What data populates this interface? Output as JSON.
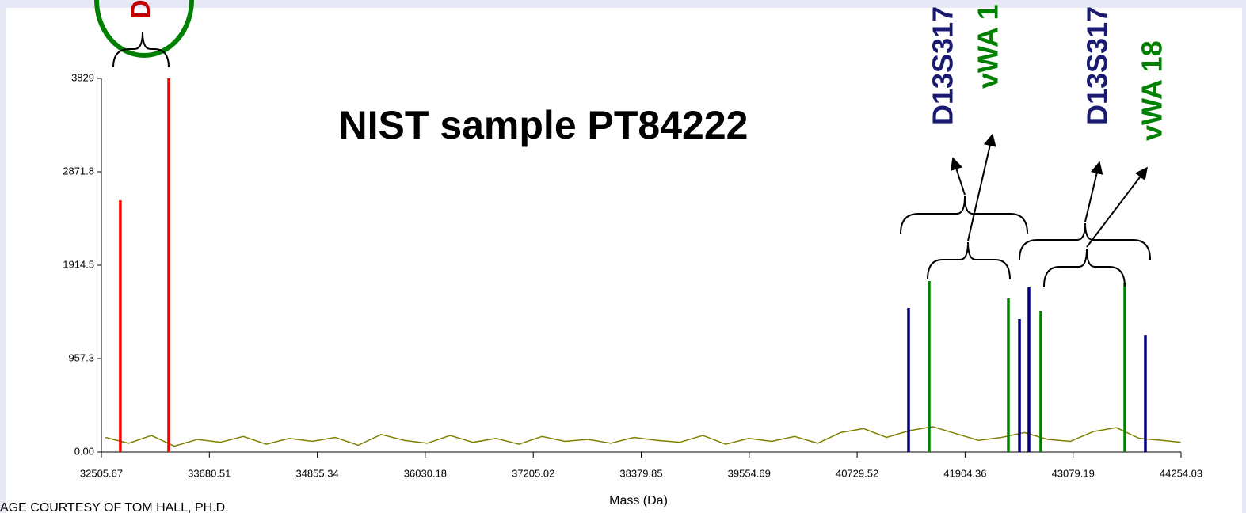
{
  "chart_data": {
    "type": "spectrum",
    "title": "NIST sample PT84222",
    "x_label": "Mass (Da)",
    "xlim": [
      32505.67,
      44254.03
    ],
    "xticks": [
      32505.67,
      33680.51,
      34855.34,
      36030.18,
      37205.02,
      38379.85,
      39554.69,
      40729.52,
      41904.36,
      43079.19,
      44254.03
    ],
    "ylim": [
      0,
      3829
    ],
    "yticks": [
      {
        "value": 0,
        "label": "0.00"
      },
      957.3,
      1914.5,
      2871.8,
      3829
    ],
    "series": [
      {
        "type": "line",
        "color": "#808000",
        "x": [
          32550,
          32800,
          33050,
          33300,
          33550,
          33800,
          34050,
          34300,
          34550,
          34800,
          35050,
          35300,
          35550,
          35800,
          36050,
          36300,
          36550,
          36800,
          37050,
          37300,
          37550,
          37800,
          38050,
          38300,
          38550,
          38800,
          39050,
          39300,
          39550,
          39800,
          40050,
          40300,
          40550,
          40800,
          41050,
          41300,
          41550,
          41800,
          42050,
          42300,
          42550,
          42800,
          43050,
          43300,
          43550,
          43800,
          44050,
          44250
        ],
        "values": [
          150,
          90,
          170,
          60,
          130,
          100,
          160,
          80,
          140,
          110,
          150,
          70,
          180,
          120,
          90,
          170,
          100,
          140,
          80,
          160,
          110,
          130,
          90,
          150,
          120,
          100,
          170,
          80,
          140,
          110,
          160,
          90,
          200,
          240,
          150,
          220,
          260,
          190,
          120,
          150,
          200,
          130,
          110,
          210,
          250,
          140,
          120,
          100
        ]
      },
      {
        "type": "stem",
        "color": "#ff0000",
        "x": [
          32712,
          33238
        ],
        "values": [
          2580,
          3829
        ]
      },
      {
        "type": "stem",
        "color": "#000080",
        "x": [
          41289,
          42496,
          42599,
          43866
        ],
        "values": [
          1476,
          1363,
          1687,
          1200
        ]
      },
      {
        "type": "stem",
        "color": "#008000",
        "x": [
          41513,
          42375,
          42728,
          43642
        ],
        "values": [
          1752,
          1574,
          1444,
          1736
        ]
      }
    ],
    "annotations": [
      {
        "text": "D",
        "color": "#c00000"
      },
      {
        "text": "D13S317",
        "color": "#1a1a70"
      },
      {
        "text": "vWA 1",
        "color": "#008000"
      },
      {
        "text": "D13S317",
        "color": "#1a1a70"
      },
      {
        "text": "vWA 18",
        "color": "#008000"
      }
    ],
    "credit": "AGE COURTESY OF TOM HALL, PH.D."
  }
}
